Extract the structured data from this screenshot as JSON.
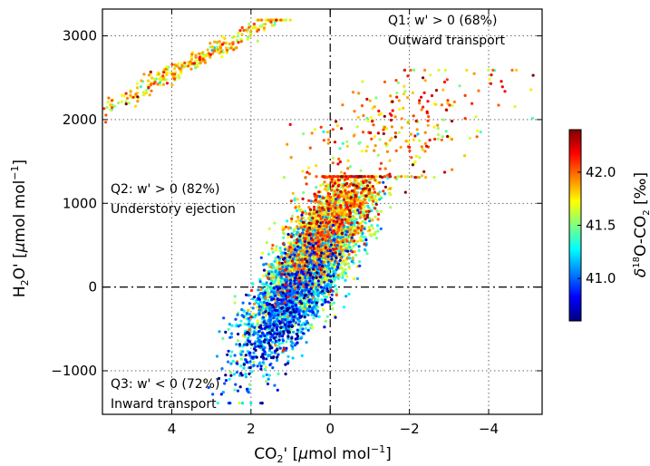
{
  "chart_data": {
    "type": "scatter",
    "title": "",
    "xlabel_main": "CO",
    "xlabel_sub": "2",
    "xlabel_rest": "' [",
    "xlabel_mu": "μ",
    "xlabel_unit": "mol mol",
    "xlabel_exp": "−1",
    "xlabel_close": "]",
    "ylabel_main": "H",
    "ylabel_sub": "2",
    "ylabel_rest": "O' [",
    "ylabel_mu": "μ",
    "ylabel_unit": "mol mol",
    "ylabel_exp": "−1",
    "ylabel_close": "]",
    "x_inverted": true,
    "xlim": [
      5.75,
      -5.35
    ],
    "ylim": [
      -1520,
      3320
    ],
    "x_ticks": [
      4,
      2,
      0,
      -2,
      -4
    ],
    "x_tick_labels": [
      "4",
      "2",
      "0",
      "−2",
      "−4"
    ],
    "y_ticks": [
      -1000,
      0,
      1000,
      2000,
      3000
    ],
    "y_tick_labels": [
      "−1000",
      "0",
      "1000",
      "2000",
      "3000"
    ],
    "grid": true,
    "grid_style": "dotted",
    "reference_lines": {
      "x": 0,
      "y": 0,
      "style": "dash-dot"
    },
    "quadrant_labels": [
      {
        "id": "q1",
        "line1": "Q1: w' > 0 (68%)",
        "line2": "Outward transport"
      },
      {
        "id": "q2",
        "line1": "Q2: w' > 0 (82%)",
        "line2": "Understory ejection"
      },
      {
        "id": "q3",
        "line1": "Q3: w' < 0 (72%)",
        "line2": "Inward transport"
      }
    ],
    "colorbar": {
      "label_delta": "δ",
      "label_sup": "18",
      "label_mid": "O-CO",
      "label_sub": "2",
      "label_unit": " [‰]",
      "min": 40.6,
      "max": 42.4,
      "ticks": [
        41.0,
        41.5,
        42.0
      ],
      "tick_labels": [
        "41.0",
        "41.5",
        "42.0"
      ],
      "colormap": "jet"
    },
    "point_clusters": [
      {
        "name_hint": "main",
        "count": 5200,
        "x_center": 0.5,
        "y_center": 300,
        "direction": [
          -0.46,
          0.887
        ],
        "length_sd": 620,
        "width_sd": 0.45,
        "length_range": [
          -1900,
          1150
        ],
        "value_center": 41.45,
        "value_gradient": 0.00035,
        "value_sd": 0.3
      },
      {
        "name_hint": "upper-left",
        "count": 340,
        "x_center": 3.6,
        "y_center": 2650,
        "direction": [
          -0.87,
          0.49
        ],
        "length_sd": 750,
        "width_sd": 0.22,
        "length_range": [
          -1500,
          1100
        ],
        "value_center": 41.75,
        "value_gradient": 0.0,
        "value_sd": 0.22
      },
      {
        "name_hint": "upper-right",
        "count": 260,
        "x_center": -1.8,
        "y_center": 1950,
        "direction": [
          -0.6,
          0.8
        ],
        "length_sd": 500,
        "width_sd": 1.1,
        "length_range": [
          -800,
          800
        ],
        "value_center": 41.9,
        "value_gradient": 0.0,
        "value_sd": 0.25
      }
    ],
    "colors": {
      "axis": "#000000",
      "grid": "#555555"
    }
  }
}
